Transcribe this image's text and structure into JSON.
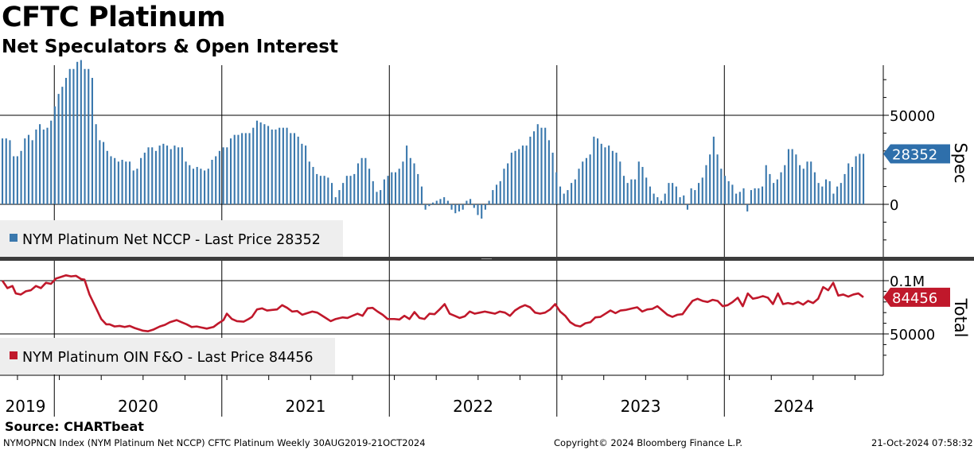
{
  "header": {
    "title": "CFTC Platinum",
    "subtitle": "Net Speculators & Open Interest"
  },
  "footer": {
    "source": "Source: CHARTbeat",
    "ticker_info": "NYMOPNCN Index (NYM Platinum Net NCCP) CFTC Platinum  Weekly 30AUG2019-21OCT2024",
    "copyright": "Copyright© 2024 Bloomberg Finance L.P.",
    "timestamp": "21-Oct-2024 07:58:32"
  },
  "colors": {
    "spec_bar": "#3a78ad",
    "total_line": "#c0182b",
    "spec_badge": "#2e6fab",
    "total_badge": "#c0182b",
    "legend_bg": "#eeeeee"
  },
  "chart_data": [
    {
      "type": "bar",
      "panel": "top",
      "series": [
        {
          "name": "NYM Platinum Net NCCP - Last Price 28352"
        }
      ],
      "side_label": "Spec",
      "last_value": 28352,
      "last_value_label": "28352",
      "y_ticks": [
        {
          "value": 0,
          "label": "0"
        },
        {
          "value": 50000,
          "label": "50000"
        }
      ],
      "ylim": [
        -30000,
        78000
      ],
      "x_start": 2019.66,
      "x_end": 2024.8,
      "values": [
        37000,
        37000,
        36000,
        27000,
        27000,
        30000,
        37000,
        39000,
        36000,
        42000,
        45000,
        42000,
        43000,
        47000,
        55000,
        62000,
        66000,
        71000,
        76000,
        76000,
        80000,
        81000,
        76000,
        76000,
        71000,
        45000,
        36000,
        35000,
        30000,
        27000,
        26000,
        24000,
        25000,
        24000,
        24000,
        19000,
        20000,
        26000,
        29000,
        32000,
        32000,
        30000,
        33000,
        34000,
        33000,
        31000,
        33000,
        32000,
        32000,
        24000,
        22000,
        20000,
        21000,
        20000,
        19000,
        20000,
        25000,
        27000,
        30000,
        32000,
        32000,
        37000,
        39000,
        39000,
        40000,
        40000,
        40000,
        43000,
        47000,
        46000,
        45000,
        44000,
        42000,
        42000,
        43000,
        43000,
        43000,
        40000,
        40000,
        38000,
        34000,
        33000,
        24000,
        21000,
        17000,
        16000,
        16000,
        15000,
        12000,
        4000,
        8000,
        12000,
        16000,
        16000,
        17000,
        23000,
        26000,
        26000,
        20000,
        13000,
        7000,
        8000,
        14000,
        16000,
        18000,
        18000,
        20000,
        24000,
        33000,
        26000,
        23000,
        17000,
        10000,
        -3000,
        -1000,
        1000,
        2000,
        3000,
        4000,
        2000,
        -3000,
        -5000,
        -4000,
        -3000,
        2000,
        3000,
        -2000,
        -6000,
        -8000,
        -3000,
        2000,
        8000,
        11000,
        13000,
        20000,
        23000,
        29000,
        30000,
        31000,
        33000,
        33000,
        38000,
        41000,
        45000,
        43000,
        43000,
        36000,
        29000,
        18000,
        10000,
        6000,
        8000,
        12000,
        14000,
        20000,
        24000,
        26000,
        28000,
        38000,
        37000,
        34000,
        32000,
        33000,
        30000,
        29000,
        24000,
        16000,
        12000,
        14000,
        14000,
        24000,
        21000,
        15000,
        10000,
        6000,
        4000,
        2000,
        6000,
        12000,
        12000,
        10000,
        4000,
        5000,
        -3000,
        9000,
        8000,
        12000,
        15000,
        22000,
        28000,
        38000,
        28000,
        20000,
        16000,
        13000,
        11000,
        6000,
        7000,
        9000,
        -4000,
        8000,
        9000,
        9000,
        10000,
        22000,
        17000,
        12000,
        14000,
        18000,
        22000,
        31000,
        31000,
        28000,
        22000,
        20000,
        24000,
        24000,
        18000,
        12000,
        10000,
        14000,
        13000,
        6000,
        10000,
        12000,
        17000,
        23000,
        21000,
        27000,
        28352,
        28352
      ]
    },
    {
      "type": "line",
      "panel": "bottom",
      "series": [
        {
          "name": "NYM Platinum OIN F&O - Last Price 84456"
        }
      ],
      "side_label": "Total",
      "last_value": 84456,
      "last_value_label": "84456",
      "y_ticks": [
        {
          "value": 50000,
          "label": "50000"
        },
        {
          "value": 100000,
          "label": "0.1M"
        }
      ],
      "ylim": [
        26000,
        105000
      ],
      "x_start": 2019.66,
      "x_end": 2024.8,
      "points": [
        [
          2019.66,
          100000
        ],
        [
          2019.69,
          93000
        ],
        [
          2019.72,
          95000
        ],
        [
          2019.74,
          88000
        ],
        [
          2019.77,
          87000
        ],
        [
          2019.8,
          90000
        ],
        [
          2019.83,
          91000
        ],
        [
          2019.86,
          95000
        ],
        [
          2019.89,
          93000
        ],
        [
          2019.92,
          98000
        ],
        [
          2019.95,
          97000
        ],
        [
          2019.98,
          102000
        ],
        [
          2020.0,
          103000
        ],
        [
          2020.04,
          105000
        ],
        [
          2020.07,
          104000
        ],
        [
          2020.1,
          104500
        ],
        [
          2020.13,
          101500
        ],
        [
          2020.15,
          101000
        ],
        [
          2020.18,
          87000
        ],
        [
          2020.22,
          74000
        ],
        [
          2020.25,
          64000
        ],
        [
          2020.28,
          59000
        ],
        [
          2020.3,
          59000
        ],
        [
          2020.33,
          57000
        ],
        [
          2020.36,
          57500
        ],
        [
          2020.39,
          56500
        ],
        [
          2020.42,
          57500
        ],
        [
          2020.45,
          55500
        ],
        [
          2020.48,
          54000
        ],
        [
          2020.5,
          53000
        ],
        [
          2020.53,
          52500
        ],
        [
          2020.56,
          54000
        ],
        [
          2020.6,
          57000
        ],
        [
          2020.63,
          58500
        ],
        [
          2020.66,
          61000
        ],
        [
          2020.7,
          63000
        ],
        [
          2020.73,
          61000
        ],
        [
          2020.76,
          59000
        ],
        [
          2020.79,
          56500
        ],
        [
          2020.82,
          57000
        ],
        [
          2020.85,
          56000
        ],
        [
          2020.88,
          55000
        ],
        [
          2020.92,
          56500
        ],
        [
          2020.95,
          60000
        ],
        [
          2020.98,
          63000
        ],
        [
          2021.0,
          69000
        ],
        [
          2021.03,
          64000
        ],
        [
          2021.06,
          62000
        ],
        [
          2021.1,
          61500
        ],
        [
          2021.13,
          64000
        ],
        [
          2021.15,
          66000
        ],
        [
          2021.18,
          73000
        ],
        [
          2021.21,
          74000
        ],
        [
          2021.24,
          72000
        ],
        [
          2021.27,
          72500
        ],
        [
          2021.3,
          73000
        ],
        [
          2021.33,
          77000
        ],
        [
          2021.36,
          74500
        ],
        [
          2021.39,
          71000
        ],
        [
          2021.42,
          71500
        ],
        [
          2021.45,
          68000
        ],
        [
          2021.48,
          69500
        ],
        [
          2021.51,
          71000
        ],
        [
          2021.54,
          70000
        ],
        [
          2021.56,
          68000
        ],
        [
          2021.59,
          65000
        ],
        [
          2021.62,
          62000
        ],
        [
          2021.65,
          64000
        ],
        [
          2021.69,
          65500
        ],
        [
          2021.72,
          65000
        ],
        [
          2021.75,
          67000
        ],
        [
          2021.78,
          69000
        ],
        [
          2021.81,
          67000
        ],
        [
          2021.84,
          74000
        ],
        [
          2021.87,
          74500
        ],
        [
          2021.9,
          71000
        ],
        [
          2021.93,
          68000
        ],
        [
          2021.96,
          64000
        ],
        [
          2022.0,
          64000
        ],
        [
          2022.03,
          63500
        ],
        [
          2022.06,
          67000
        ],
        [
          2022.09,
          64000
        ],
        [
          2022.12,
          70500
        ],
        [
          2022.15,
          65000
        ],
        [
          2022.18,
          64000
        ],
        [
          2022.21,
          69000
        ],
        [
          2022.24,
          68500
        ],
        [
          2022.27,
          73000
        ],
        [
          2022.3,
          78000
        ],
        [
          2022.33,
          69000
        ],
        [
          2022.36,
          67000
        ],
        [
          2022.39,
          65000
        ],
        [
          2022.42,
          66500
        ],
        [
          2022.45,
          71000
        ],
        [
          2022.48,
          69000
        ],
        [
          2022.51,
          70000
        ],
        [
          2022.54,
          71000
        ],
        [
          2022.57,
          70000
        ],
        [
          2022.6,
          69000
        ],
        [
          2022.63,
          71000
        ],
        [
          2022.66,
          70000
        ],
        [
          2022.69,
          67000
        ],
        [
          2022.72,
          72000
        ],
        [
          2022.75,
          75000
        ],
        [
          2022.78,
          77000
        ],
        [
          2022.81,
          75000
        ],
        [
          2022.84,
          70000
        ],
        [
          2022.87,
          69000
        ],
        [
          2022.9,
          70000
        ],
        [
          2022.93,
          73000
        ],
        [
          2022.96,
          78000
        ],
        [
          2022.99,
          71000
        ],
        [
          2023.02,
          67000
        ],
        [
          2023.05,
          61000
        ],
        [
          2023.08,
          58000
        ],
        [
          2023.11,
          57000
        ],
        [
          2023.14,
          60000
        ],
        [
          2023.17,
          61000
        ],
        [
          2023.2,
          65500
        ],
        [
          2023.23,
          66000
        ],
        [
          2023.26,
          69000
        ],
        [
          2023.29,
          72000
        ],
        [
          2023.32,
          69500
        ],
        [
          2023.35,
          72000
        ],
        [
          2023.38,
          72500
        ],
        [
          2023.42,
          74000
        ],
        [
          2023.45,
          75000
        ],
        [
          2023.48,
          71000
        ],
        [
          2023.51,
          73000
        ],
        [
          2023.54,
          73500
        ],
        [
          2023.57,
          76000
        ],
        [
          2023.6,
          72000
        ],
        [
          2023.63,
          68000
        ],
        [
          2023.66,
          66000
        ],
        [
          2023.69,
          68000
        ],
        [
          2023.72,
          68500
        ],
        [
          2023.75,
          75000
        ],
        [
          2023.78,
          81000
        ],
        [
          2023.81,
          83000
        ],
        [
          2023.84,
          81000
        ],
        [
          2023.87,
          80000
        ],
        [
          2023.9,
          82000
        ],
        [
          2023.93,
          81000
        ],
        [
          2023.96,
          76000
        ],
        [
          2023.99,
          77000
        ],
        [
          2024.02,
          80000
        ],
        [
          2024.05,
          84000
        ],
        [
          2024.08,
          76000
        ],
        [
          2024.11,
          88000
        ],
        [
          2024.14,
          83000
        ],
        [
          2024.17,
          84000
        ],
        [
          2024.2,
          85500
        ],
        [
          2024.23,
          84000
        ],
        [
          2024.26,
          78000
        ],
        [
          2024.29,
          88000
        ],
        [
          2024.32,
          78000
        ],
        [
          2024.35,
          79000
        ],
        [
          2024.38,
          78000
        ],
        [
          2024.41,
          80000
        ],
        [
          2024.44,
          77500
        ],
        [
          2024.47,
          81000
        ],
        [
          2024.5,
          79000
        ],
        [
          2024.53,
          83000
        ],
        [
          2024.56,
          94000
        ],
        [
          2024.59,
          91000
        ],
        [
          2024.62,
          98000
        ],
        [
          2024.65,
          86000
        ],
        [
          2024.68,
          87000
        ],
        [
          2024.71,
          85000
        ],
        [
          2024.74,
          87000
        ],
        [
          2024.77,
          88000
        ],
        [
          2024.8,
          84456
        ]
      ]
    }
  ],
  "x_axis": {
    "labels": [
      "2019",
      "2020",
      "2021",
      "2022",
      "2023",
      "2024"
    ]
  }
}
